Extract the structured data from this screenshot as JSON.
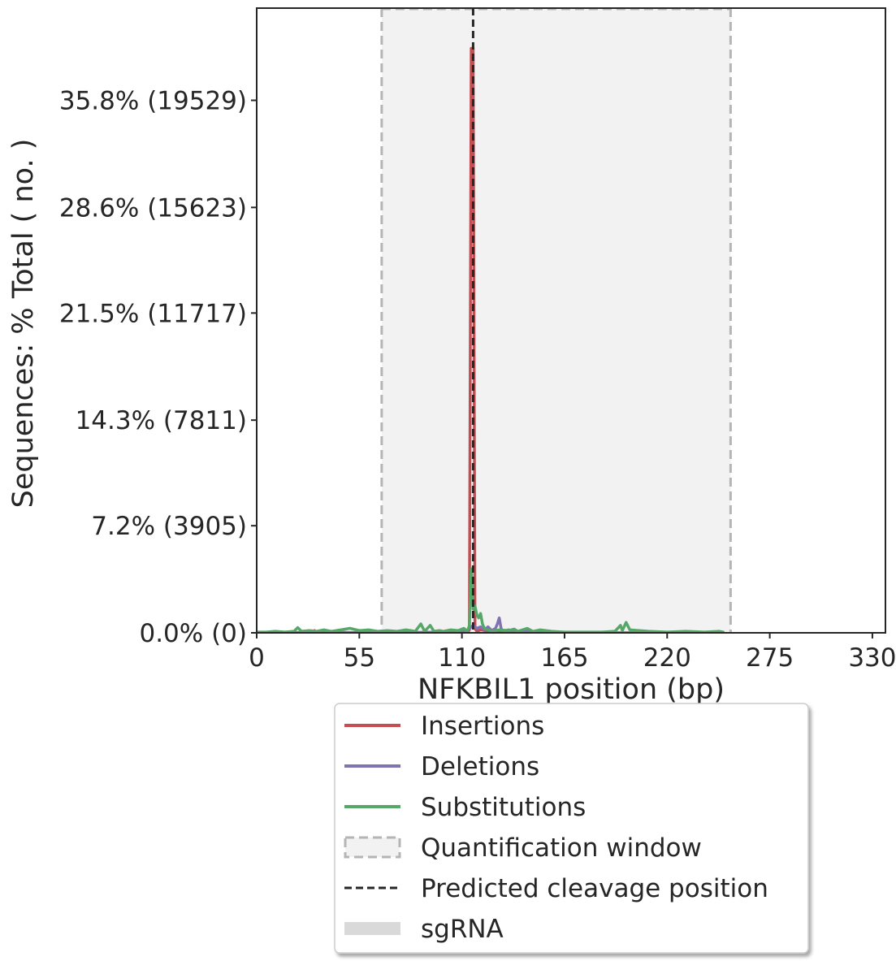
{
  "chart_data": {
    "type": "line",
    "xlabel": "NFKBIL1 position (bp)",
    "ylabel": "Sequences: % Total ( no. )",
    "xlim": [
      0,
      337
    ],
    "ylim": [
      0,
      42.0
    ],
    "x_ticks": [
      0,
      55,
      110,
      165,
      220,
      275,
      330
    ],
    "y_ticks": [
      {
        "value": 0.0,
        "label": "0.0% (0)"
      },
      {
        "value": 7.2,
        "label": "7.2% (3905)"
      },
      {
        "value": 14.3,
        "label": "14.3% (7811)"
      },
      {
        "value": 21.5,
        "label": "21.5% (11717)"
      },
      {
        "value": 28.6,
        "label": "28.6% (15623)"
      },
      {
        "value": 35.8,
        "label": "35.8% (19529)"
      }
    ],
    "quantification_window": [
      67,
      254
    ],
    "predicted_cleavage_position": 116,
    "series": [
      {
        "name": "Insertions",
        "color": "#c44e52",
        "points": [
          [
            0,
            0
          ],
          [
            30,
            0
          ],
          [
            31,
            0.15
          ],
          [
            32,
            0
          ],
          [
            60,
            0
          ],
          [
            100,
            0
          ],
          [
            110,
            0
          ],
          [
            113,
            0
          ],
          [
            114,
            0.2
          ],
          [
            115,
            39.3
          ],
          [
            116,
            39.3
          ],
          [
            117,
            0.3
          ],
          [
            118,
            0.1
          ],
          [
            120,
            0.2
          ],
          [
            124,
            0.1
          ],
          [
            130,
            0.05
          ],
          [
            140,
            0.1
          ],
          [
            150,
            0.05
          ],
          [
            155,
            0
          ],
          [
            200,
            0
          ],
          [
            250,
            0
          ]
        ]
      },
      {
        "name": "Deletions",
        "color": "#8172b2",
        "points": [
          [
            0,
            0
          ],
          [
            40,
            0.05
          ],
          [
            60,
            0
          ],
          [
            100,
            0.05
          ],
          [
            112,
            0.1
          ],
          [
            114,
            0.3
          ],
          [
            116,
            0.5
          ],
          [
            118,
            0.3
          ],
          [
            120,
            0.4
          ],
          [
            122,
            0.2
          ],
          [
            124,
            0.4
          ],
          [
            126,
            0.15
          ],
          [
            128,
            0.3
          ],
          [
            129,
            0.6
          ],
          [
            130,
            1.0
          ],
          [
            131,
            0.3
          ],
          [
            132,
            0.1
          ],
          [
            135,
            0.2
          ],
          [
            140,
            0.05
          ],
          [
            145,
            0.1
          ],
          [
            150,
            0
          ],
          [
            200,
            0
          ],
          [
            250,
            0
          ]
        ]
      },
      {
        "name": "Substitutions",
        "color": "#55a868",
        "points": [
          [
            0,
            0.05
          ],
          [
            5,
            0.05
          ],
          [
            10,
            0.1
          ],
          [
            15,
            0.05
          ],
          [
            20,
            0.1
          ],
          [
            22,
            0.35
          ],
          [
            24,
            0.1
          ],
          [
            28,
            0.15
          ],
          [
            32,
            0.1
          ],
          [
            36,
            0.2
          ],
          [
            40,
            0.1
          ],
          [
            45,
            0.2
          ],
          [
            50,
            0.3
          ],
          [
            55,
            0.15
          ],
          [
            60,
            0.2
          ],
          [
            65,
            0.1
          ],
          [
            70,
            0.15
          ],
          [
            75,
            0.1
          ],
          [
            80,
            0.2
          ],
          [
            85,
            0.1
          ],
          [
            88,
            0.6
          ],
          [
            90,
            0.1
          ],
          [
            93,
            0.5
          ],
          [
            95,
            0.1
          ],
          [
            98,
            0.15
          ],
          [
            100,
            0.1
          ],
          [
            104,
            0.2
          ],
          [
            108,
            0.15
          ],
          [
            111,
            0.3
          ],
          [
            113,
            0.1
          ],
          [
            114,
            0.5
          ],
          [
            115,
            4.3
          ],
          [
            116,
            1.6
          ],
          [
            117,
            1.8
          ],
          [
            118,
            1.2
          ],
          [
            119,
            1.0
          ],
          [
            120,
            1.3
          ],
          [
            121,
            0.6
          ],
          [
            122,
            0.3
          ],
          [
            124,
            0.2
          ],
          [
            126,
            0.1
          ],
          [
            130,
            0.2
          ],
          [
            135,
            0.15
          ],
          [
            138,
            0.25
          ],
          [
            140,
            0.1
          ],
          [
            145,
            0.3
          ],
          [
            148,
            0.1
          ],
          [
            152,
            0.2
          ],
          [
            158,
            0.1
          ],
          [
            165,
            0.05
          ],
          [
            175,
            0.05
          ],
          [
            185,
            0.05
          ],
          [
            192,
            0.1
          ],
          [
            195,
            0.5
          ],
          [
            196,
            0.15
          ],
          [
            198,
            0.7
          ],
          [
            200,
            0.2
          ],
          [
            205,
            0.15
          ],
          [
            210,
            0.1
          ],
          [
            220,
            0.05
          ],
          [
            230,
            0.1
          ],
          [
            240,
            0.05
          ],
          [
            248,
            0.1
          ],
          [
            250,
            0.05
          ]
        ]
      }
    ],
    "legend": {
      "placement": "below",
      "entries": [
        {
          "label": "Insertions",
          "kind": "line",
          "color": "#c44e52"
        },
        {
          "label": "Deletions",
          "kind": "line",
          "color": "#8172b2"
        },
        {
          "label": "Substitutions",
          "kind": "line",
          "color": "#55a868"
        },
        {
          "label": "Quantification window",
          "kind": "box",
          "color": "#b5b5b5"
        },
        {
          "label": "Predicted cleavage position",
          "kind": "dashed",
          "color": "#262626"
        },
        {
          "label": "sgRNA",
          "kind": "bar",
          "color": "#d9d9d9"
        }
      ]
    }
  }
}
